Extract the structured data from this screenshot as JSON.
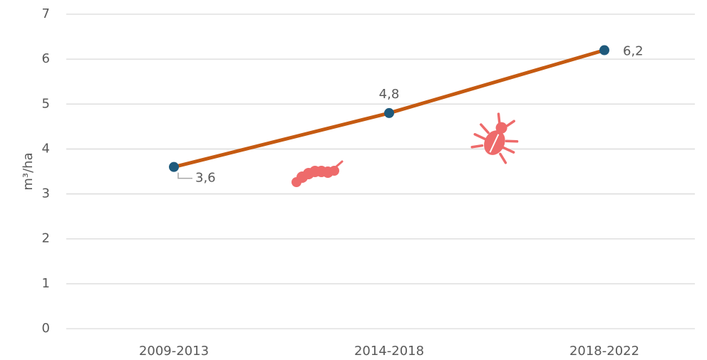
{
  "chart_data": {
    "type": "line",
    "y_label": "m³/ha",
    "categories": [
      "2009-2013",
      "2014-2018",
      "2018-2022"
    ],
    "values": [
      3.6,
      4.8,
      6.2
    ],
    "value_labels": [
      "3,6",
      "4,8",
      "6,2"
    ],
    "color": "#c55a11",
    "marker_color": "#1f5a7c",
    "ylim": [
      0,
      7
    ],
    "yticks": [
      0,
      1,
      2,
      3,
      4,
      5,
      6,
      7
    ],
    "grid": true
  }
}
